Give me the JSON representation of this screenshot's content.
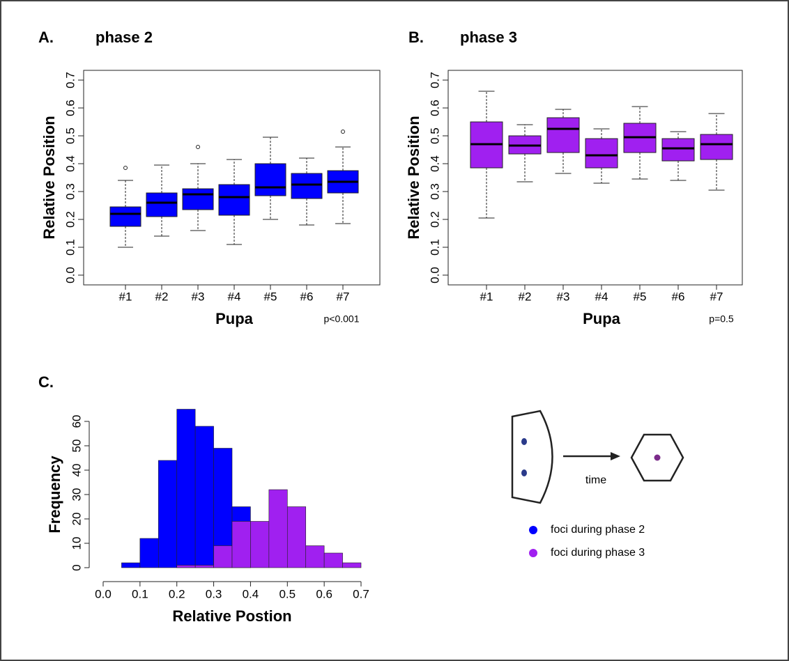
{
  "chart_data": [
    {
      "type": "boxplot",
      "panel_label": "A.",
      "title": "phase 2",
      "y_label": "Relative Position",
      "x_label": "Pupa",
      "annotation": "p<0.001",
      "color": "#0000ff",
      "categories": [
        "#1",
        "#2",
        "#3",
        "#4",
        "#5",
        "#6",
        "#7"
      ],
      "boxes": [
        {
          "min": 0.1,
          "q1": 0.175,
          "median": 0.22,
          "q3": 0.245,
          "max": 0.34,
          "outliers": [
            0.385
          ]
        },
        {
          "min": 0.14,
          "q1": 0.21,
          "median": 0.26,
          "q3": 0.295,
          "max": 0.395,
          "outliers": []
        },
        {
          "min": 0.16,
          "q1": 0.235,
          "median": 0.29,
          "q3": 0.31,
          "max": 0.4,
          "outliers": [
            0.46
          ]
        },
        {
          "min": 0.11,
          "q1": 0.215,
          "median": 0.28,
          "q3": 0.325,
          "max": 0.415,
          "outliers": []
        },
        {
          "min": 0.2,
          "q1": 0.285,
          "median": 0.315,
          "q3": 0.4,
          "max": 0.495,
          "outliers": []
        },
        {
          "min": 0.18,
          "q1": 0.275,
          "median": 0.325,
          "q3": 0.365,
          "max": 0.42,
          "outliers": []
        },
        {
          "min": 0.185,
          "q1": 0.295,
          "median": 0.335,
          "q3": 0.375,
          "max": 0.46,
          "outliers": [
            0.515
          ]
        }
      ],
      "ylim": [
        -0.035,
        0.735
      ],
      "yticks": [
        {
          "value": 0,
          "label": "0.0"
        },
        0.1,
        0.2,
        0.3,
        0.4,
        0.5,
        0.6,
        0.7
      ]
    },
    {
      "type": "boxplot",
      "panel_label": "B.",
      "title": "phase 3",
      "y_label": "Relative Position",
      "x_label": "Pupa",
      "annotation": "p=0.5",
      "color": "#a020f0",
      "categories": [
        "#1",
        "#2",
        "#3",
        "#4",
        "#5",
        "#6",
        "#7"
      ],
      "boxes": [
        {
          "min": 0.205,
          "q1": 0.385,
          "median": 0.47,
          "q3": 0.55,
          "max": 0.66,
          "outliers": []
        },
        {
          "min": 0.335,
          "q1": 0.435,
          "median": 0.465,
          "q3": 0.5,
          "max": 0.54,
          "outliers": []
        },
        {
          "min": 0.365,
          "q1": 0.44,
          "median": 0.525,
          "q3": 0.565,
          "max": 0.595,
          "outliers": []
        },
        {
          "min": 0.33,
          "q1": 0.385,
          "median": 0.43,
          "q3": 0.49,
          "max": 0.525,
          "outliers": []
        },
        {
          "min": 0.345,
          "q1": 0.44,
          "median": 0.495,
          "q3": 0.545,
          "max": 0.605,
          "outliers": []
        },
        {
          "min": 0.34,
          "q1": 0.41,
          "median": 0.455,
          "q3": 0.49,
          "max": 0.515,
          "outliers": []
        },
        {
          "min": 0.305,
          "q1": 0.415,
          "median": 0.47,
          "q3": 0.505,
          "max": 0.58,
          "outliers": []
        }
      ],
      "ylim": [
        -0.035,
        0.735
      ],
      "yticks": [
        {
          "value": 0,
          "label": "0.0"
        },
        0.1,
        0.2,
        0.3,
        0.4,
        0.5,
        0.6,
        0.7
      ]
    },
    {
      "type": "histogram",
      "panel_label": "C.",
      "x_label": "Relative Postion",
      "y_label": "Frequency",
      "bins": [
        0.05,
        0.1,
        0.15,
        0.2,
        0.25,
        0.3,
        0.35,
        0.4,
        0.45,
        0.5,
        0.55,
        0.6,
        0.65,
        0.7
      ],
      "series": [
        {
          "name": "foci during phase 2",
          "color": "#0000ff",
          "values": [
            2,
            12,
            44,
            65,
            58,
            49,
            25,
            0,
            0,
            0,
            0,
            0,
            0
          ]
        },
        {
          "name": "foci during phase 3",
          "color": "#a020f0",
          "values": [
            0,
            0,
            0,
            1,
            1,
            9,
            19,
            19,
            32,
            25,
            9,
            6,
            2
          ]
        }
      ],
      "xlim": [
        0,
        0.7
      ],
      "xticks": [
        {
          "value": 0,
          "label": "0.0"
        },
        0.1,
        0.2,
        0.3,
        0.4,
        0.5,
        0.6,
        0.7
      ],
      "ylim": [
        0,
        60
      ],
      "yticks": [
        0,
        10,
        20,
        30,
        40,
        50,
        60
      ]
    }
  ],
  "diagram": {
    "arrow_label": "time"
  }
}
